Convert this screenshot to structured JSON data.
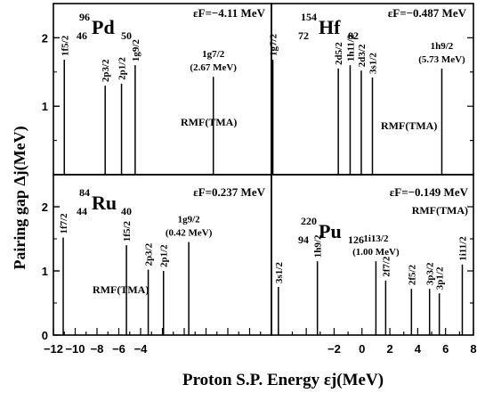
{
  "figure": {
    "ylabel": "Pairing gap Δj(MeV)",
    "xlabel": "Proton S.P. Energy εj(MeV)"
  },
  "axes": {
    "x_ticks": [
      "−12",
      "−10",
      "−8",
      "−6",
      "−4",
      "−2",
      "0",
      "2",
      "4",
      "6",
      "8"
    ],
    "y_ticks_top": [
      "2",
      "1"
    ],
    "y_ticks_bottom": [
      "2",
      "1",
      "0"
    ]
  },
  "chart_data": [
    {
      "type": "bar",
      "panel": "top-left",
      "nucleus": {
        "mass": "96",
        "charge": "46",
        "symbol": "Pd",
        "neutrons": "50"
      },
      "fermi": "εF=−4.11 MeV",
      "model": "RMF(TMA)",
      "xlim": [
        -12,
        8
      ],
      "ylim": [
        0,
        2.5
      ],
      "levels": [
        {
          "label": "1f5/2",
          "x": -11.0,
          "y": 1.68
        },
        {
          "label": "2p3/2",
          "x": -7.25,
          "y": 1.3
        },
        {
          "label": "2p1/2",
          "x": -5.75,
          "y": 1.33
        },
        {
          "label": "1g9/2",
          "x": -4.5,
          "y": 1.6
        },
        {
          "label": "1g7/2",
          "x": 2.67,
          "y": 1.43,
          "note": "(2.67 MeV)"
        }
      ]
    },
    {
      "type": "bar",
      "panel": "top-right",
      "nucleus": {
        "mass": "154",
        "charge": "72",
        "symbol": "Hf",
        "neutrons": "82"
      },
      "fermi": "εF=−0.487 MeV",
      "model": "RMF(TMA)",
      "xlim": [
        -6.5,
        8
      ],
      "ylim": [
        0,
        2.5
      ],
      "levels": [
        {
          "label": "1g7/2",
          "x": -6.4,
          "y": 1.68
        },
        {
          "label": "2d5/2",
          "x": -1.7,
          "y": 1.55
        },
        {
          "label": "1h11/2",
          "x": -0.85,
          "y": 1.6
        },
        {
          "label": "2d3/2",
          "x": -0.05,
          "y": 1.52
        },
        {
          "label": "3s1/2",
          "x": 0.75,
          "y": 1.42
        },
        {
          "label": "1h9/2",
          "x": 5.73,
          "y": 1.55,
          "note": "(5.73 MeV)"
        }
      ]
    },
    {
      "type": "bar",
      "panel": "bottom-left",
      "nucleus": {
        "mass": "84",
        "charge": "44",
        "symbol": "Ru",
        "neutrons": "40"
      },
      "fermi": "εF=0.237 MeV",
      "model": "RMF(TMA)",
      "xlim": [
        -12,
        8
      ],
      "ylim": [
        0,
        2.5
      ],
      "levels": [
        {
          "label": "1f7/2",
          "x": -11.1,
          "y": 1.52
        },
        {
          "label": "1f5/2",
          "x": -5.3,
          "y": 1.4
        },
        {
          "label": "2p3/2",
          "x": -3.3,
          "y": 1.02
        },
        {
          "label": "2p1/2",
          "x": -1.9,
          "y": 1.0
        },
        {
          "label": "1g9/2",
          "x": 0.42,
          "y": 1.45,
          "note": "(0.42 MeV)"
        }
      ]
    },
    {
      "type": "bar",
      "panel": "bottom-right",
      "nucleus": {
        "mass": "220",
        "charge": "94",
        "symbol": "Pu",
        "neutrons": "126"
      },
      "fermi": "εF=−0.149 MeV",
      "model": "RMF(TMA)",
      "xlim": [
        -6.5,
        8
      ],
      "ylim": [
        0,
        2.5
      ],
      "levels": [
        {
          "label": "3s1/2",
          "x": -6.0,
          "y": 0.75
        },
        {
          "label": "1h9/2",
          "x": -3.2,
          "y": 1.15
        },
        {
          "label": "1i13/2",
          "x": 1.0,
          "y": 1.15,
          "note": "(1.00 MeV)"
        },
        {
          "label": "2f7/2",
          "x": 1.7,
          "y": 0.85
        },
        {
          "label": "2f5/2",
          "x": 3.55,
          "y": 0.72
        },
        {
          "label": "3p3/2",
          "x": 4.85,
          "y": 0.72
        },
        {
          "label": "3p1/2",
          "x": 5.55,
          "y": 0.65
        },
        {
          "label": "1i11/2",
          "x": 7.2,
          "y": 1.1
        }
      ]
    }
  ]
}
